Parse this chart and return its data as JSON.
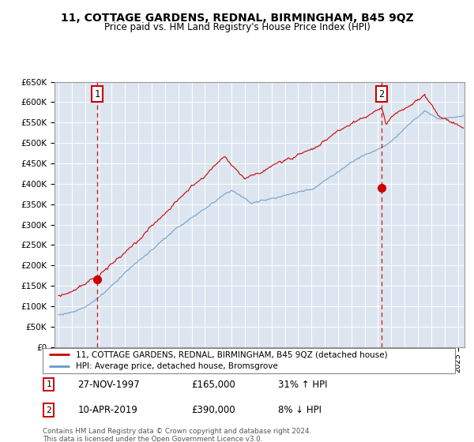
{
  "title": "11, COTTAGE GARDENS, REDNAL, BIRMINGHAM, B45 9QZ",
  "subtitle": "Price paid vs. HM Land Registry's House Price Index (HPI)",
  "legend_line1": "11, COTTAGE GARDENS, REDNAL, BIRMINGHAM, B45 9QZ (detached house)",
  "legend_line2": "HPI: Average price, detached house, Bromsgrove",
  "annotation1_date": "27-NOV-1997",
  "annotation1_price": "£165,000",
  "annotation1_hpi": "31% ↑ HPI",
  "annotation2_date": "10-APR-2019",
  "annotation2_price": "£390,000",
  "annotation2_hpi": "8% ↓ HPI",
  "footer": "Contains HM Land Registry data © Crown copyright and database right 2024.\nThis data is licensed under the Open Government Licence v3.0.",
  "bg_color": "#dde6f0",
  "line1_color": "#cc0000",
  "line2_color": "#6699cc",
  "ylim": [
    0,
    650000
  ],
  "yticks": [
    0,
    50000,
    100000,
    150000,
    200000,
    250000,
    300000,
    350000,
    400000,
    450000,
    500000,
    550000,
    600000,
    650000
  ],
  "sale1_x": 1997.9,
  "sale1_y": 165000,
  "sale2_x": 2019.27,
  "sale2_y": 390000,
  "xmin": 1994.7,
  "xmax": 2025.5
}
